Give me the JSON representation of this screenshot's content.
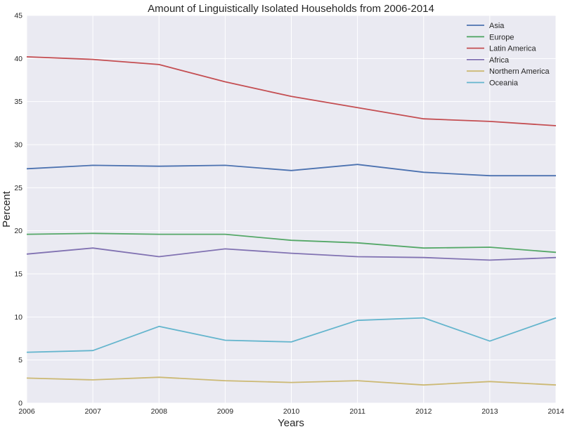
{
  "chart_data": {
    "type": "line",
    "title": "Amount of Linguistically Isolated Households from 2006-2014",
    "xlabel": "Years",
    "ylabel": "Percent",
    "x": [
      2006,
      2007,
      2008,
      2009,
      2010,
      2011,
      2012,
      2013,
      2014
    ],
    "xticks": [
      "2006",
      "2007",
      "2008",
      "2009",
      "2010",
      "2011",
      "2012",
      "2013",
      "2014"
    ],
    "yticks": [
      "0",
      "5",
      "10",
      "15",
      "20",
      "25",
      "30",
      "35",
      "40",
      "45"
    ],
    "xlim": [
      2006,
      2014
    ],
    "ylim": [
      0,
      45
    ],
    "grid": true,
    "legend_position": "top-right",
    "background": "#eaeaf2",
    "series": [
      {
        "name": "Asia",
        "color": "#4c72b0",
        "values": [
          27.2,
          27.6,
          27.5,
          27.6,
          27.0,
          27.7,
          26.8,
          26.4,
          26.4
        ]
      },
      {
        "name": "Europe",
        "color": "#55a868",
        "values": [
          19.6,
          19.7,
          19.6,
          19.6,
          18.9,
          18.6,
          18.0,
          18.1,
          17.5
        ]
      },
      {
        "name": "Latin America",
        "color": "#c44e52",
        "values": [
          40.2,
          39.9,
          39.3,
          37.3,
          35.6,
          34.3,
          33.0,
          32.7,
          32.2
        ]
      },
      {
        "name": "Africa",
        "color": "#8172b2",
        "values": [
          17.3,
          18.0,
          17.0,
          17.9,
          17.4,
          17.0,
          16.9,
          16.6,
          16.9
        ]
      },
      {
        "name": "Northern America",
        "color": "#ccb974",
        "values": [
          2.9,
          2.7,
          3.0,
          2.6,
          2.4,
          2.6,
          2.1,
          2.5,
          2.1
        ]
      },
      {
        "name": "Oceania",
        "color": "#64b5cd",
        "values": [
          5.9,
          6.1,
          8.9,
          7.3,
          7.1,
          9.6,
          9.9,
          7.2,
          9.9
        ]
      }
    ]
  }
}
